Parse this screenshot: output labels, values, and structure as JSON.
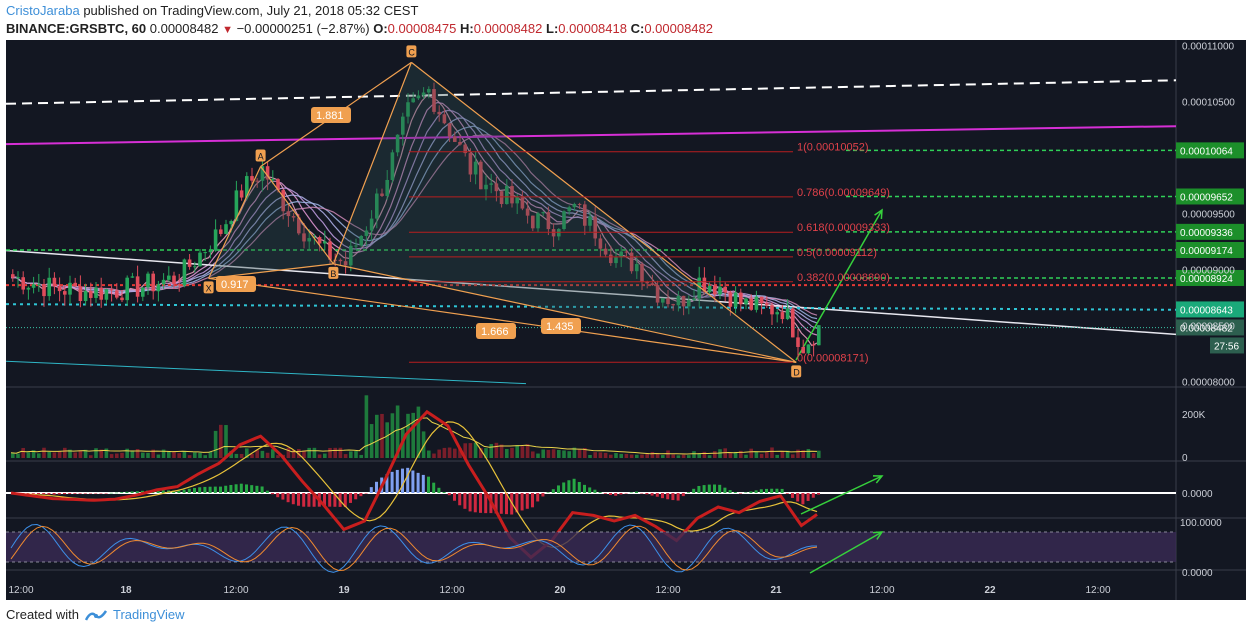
{
  "header": {
    "user": "CristoJaraba",
    "published_text": "published on TradingView.com, July 21, 2018 05:32 CEST",
    "symbol": "BINANCE:GRSBTC, 60",
    "price": "0.00008482",
    "change": "−0.00000251 (−2.87%)",
    "o_label": "O:",
    "o_value": "0.00008475",
    "h_label": "H:",
    "h_value": "0.00008482",
    "l_label": "L:",
    "l_value": "0.00008418",
    "c_label": "C:",
    "c_value": "0.00008482"
  },
  "footer": {
    "created_with": "Created with",
    "brand": "TradingView",
    "logo_icon": "tradingview-logo-icon"
  },
  "colors": {
    "background": "#131722",
    "up": "#26a65b",
    "down": "#e04c5b",
    "pattern": "#f0a050",
    "fib": "#b81f1f",
    "fib_text": "#e0414a",
    "guide_green": "#30d158",
    "magenta": "#d62fd6",
    "arrow": "#36d03c"
  },
  "chart_data": [
    {
      "type": "candlestick",
      "series_name": "BINANCE:GRSBTC, 60",
      "x_tick_labels": [
        "12:00",
        "18",
        "12:00",
        "19",
        "12:00",
        "20",
        "12:00",
        "21",
        "12:00",
        "22",
        "12:00"
      ],
      "price_axis_labels": [
        "0.00011000",
        "0.00010500",
        "0.00009500",
        "0.00009000",
        "0.00008500",
        "0.00008000"
      ],
      "price_tags": [
        "0.00010064",
        "0.00009652",
        "0.00009336",
        "0.00009174",
        "0.00008924",
        "0.00008643",
        "0.00008482"
      ],
      "countdown": "27:56",
      "ylim": [
        7.95e-05,
        0.0001105
      ],
      "approx_close_path": [
        [
          0,
          8.93e-05
        ],
        [
          8,
          8.83e-05
        ],
        [
          16,
          8.8e-05
        ],
        [
          24,
          8.84e-05
        ],
        [
          32,
          8.93e-05
        ],
        [
          40,
          9.35e-05
        ],
        [
          44,
          9.7e-05
        ],
        [
          48,
          9.9e-05
        ],
        [
          52,
          9.6e-05
        ],
        [
          56,
          9.35e-05
        ],
        [
          60,
          9.15e-05
        ],
        [
          64,
          9.05e-05
        ],
        [
          68,
          9.4e-05
        ],
        [
          72,
          9.85e-05
        ],
        [
          76,
          0.000104
        ],
        [
          80,
          0.000106
        ],
        [
          84,
          0.0001025
        ],
        [
          88,
          9.9e-05
        ],
        [
          92,
          9.75e-05
        ],
        [
          96,
          9.6e-05
        ],
        [
          100,
          9.45e-05
        ],
        [
          104,
          9.4e-05
        ],
        [
          108,
          9.55e-05
        ],
        [
          112,
          9.35e-05
        ],
        [
          116,
          9.1e-05
        ],
        [
          120,
          9.05e-05
        ],
        [
          124,
          8.8e-05
        ],
        [
          128,
          8.7e-05
        ],
        [
          132,
          8.9e-05
        ],
        [
          136,
          8.85e-05
        ],
        [
          140,
          8.7e-05
        ],
        [
          144,
          8.65e-05
        ],
        [
          148,
          8.65e-05
        ],
        [
          152,
          8.32e-05
        ],
        [
          155,
          8.48e-05
        ]
      ],
      "pattern": {
        "points": [
          "X",
          "A",
          "B",
          "C",
          "D"
        ],
        "ratios": [
          "1.881",
          "0.917",
          "1.666",
          "1.435"
        ]
      },
      "fib_levels": [
        {
          "label": "1(0.00010052)",
          "value": 0.00010052
        },
        {
          "label": "0.786(0.00009649)",
          "value": 9.649e-05
        },
        {
          "label": "0.618(0.00009333)",
          "value": 9.333e-05
        },
        {
          "label": "0.5(0.00009112)",
          "value": 9.112e-05
        },
        {
          "label": "0.382(0.00008890)",
          "value": 8.89e-05
        },
        {
          "label": "0(0.00008171)",
          "value": 8.171e-05
        }
      ]
    },
    {
      "type": "bar",
      "series_name": "Volume",
      "axis_labels": [
        "200K",
        "0"
      ]
    },
    {
      "type": "line",
      "series_name": "MACD",
      "axis_labels": [
        "0.0000"
      ]
    },
    {
      "type": "line",
      "series_name": "Stoch RSI",
      "axis_labels": [
        "100.0000",
        "0.0000"
      ]
    }
  ]
}
